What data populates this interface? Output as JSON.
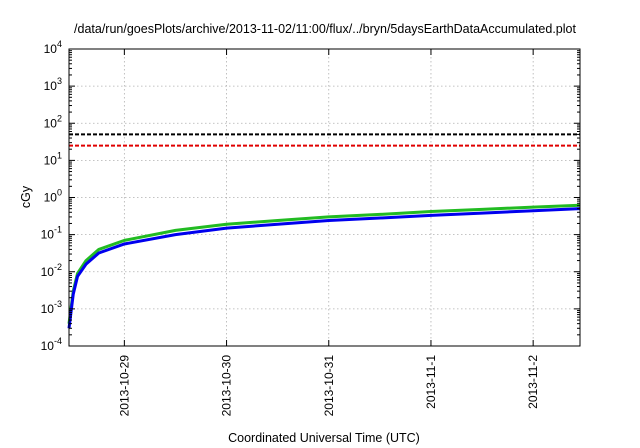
{
  "chart_data": {
    "type": "line",
    "title": "/data/run/goesPlots/archive/2013-11-02/11:00/flux/../bryn/5daysEarthDataAccumulated.plot",
    "xlabel": "Coordinated Universal Time (UTC)",
    "ylabel": "cGy",
    "yscale": "log",
    "ylim": [
      0.0001,
      10000
    ],
    "y_ticks": [
      {
        "base": "10",
        "exp": "-4",
        "value": 0.0001
      },
      {
        "base": "10",
        "exp": "-3",
        "value": 0.001
      },
      {
        "base": "10",
        "exp": "-2",
        "value": 0.01
      },
      {
        "base": "10",
        "exp": "-1",
        "value": 0.1
      },
      {
        "base": "10",
        "exp": "0",
        "value": 1
      },
      {
        "base": "10",
        "exp": "1",
        "value": 10
      },
      {
        "base": "10",
        "exp": "2",
        "value": 100
      },
      {
        "base": "10",
        "exp": "3",
        "value": 1000
      },
      {
        "base": "10",
        "exp": "4",
        "value": 10000
      }
    ],
    "xlim": [
      "2013-10-28 11:00",
      "2013-11-02 11:00"
    ],
    "x_ticks": [
      "2013-10-29",
      "2013-10-30",
      "2013-10-31",
      "2013-11-1",
      "2013-11-2"
    ],
    "grid": true,
    "legend": "none",
    "thresholds": [
      {
        "value": 50,
        "color": "#000000",
        "style": "dashed"
      },
      {
        "value": 25,
        "color": "#e00000",
        "style": "dashed"
      }
    ],
    "series": [
      {
        "color": "#22bb22",
        "x": [
          "2013-10-28 11:00",
          "2013-10-28 12:00",
          "2013-10-28 13:00",
          "2013-10-28 15:00",
          "2013-10-28 18:00",
          "2013-10-29 00:00",
          "2013-10-29 12:00",
          "2013-10-30 00:00",
          "2013-10-30 12:00",
          "2013-10-31 00:00",
          "2013-10-31 12:00",
          "2013-11-01 00:00",
          "2013-11-01 12:00",
          "2013-11-02 00:00",
          "2013-11-02 11:00"
        ],
        "values": [
          0.0004,
          0.003,
          0.009,
          0.02,
          0.04,
          0.07,
          0.13,
          0.19,
          0.24,
          0.3,
          0.35,
          0.42,
          0.48,
          0.55,
          0.62
        ]
      },
      {
        "color": "#0000ee",
        "x": [
          "2013-10-28 11:00",
          "2013-10-28 12:00",
          "2013-10-28 13:00",
          "2013-10-28 15:00",
          "2013-10-28 18:00",
          "2013-10-29 00:00",
          "2013-10-29 12:00",
          "2013-10-30 00:00",
          "2013-10-30 12:00",
          "2013-10-31 00:00",
          "2013-10-31 12:00",
          "2013-11-01 00:00",
          "2013-11-01 12:00",
          "2013-11-02 00:00",
          "2013-11-02 11:00"
        ],
        "values": [
          0.0003,
          0.0025,
          0.0075,
          0.016,
          0.032,
          0.056,
          0.1,
          0.15,
          0.19,
          0.24,
          0.28,
          0.33,
          0.38,
          0.44,
          0.5
        ]
      }
    ]
  }
}
